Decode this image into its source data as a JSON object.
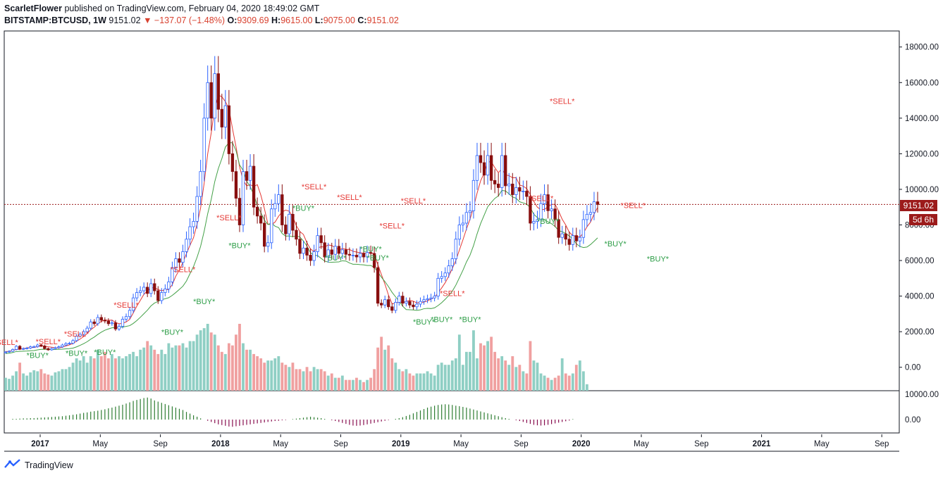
{
  "header": {
    "author": "ScarletFlower",
    "published_text": "published on TradingView.com, February 04, 2020 18:49:02 GMT",
    "symbol": "BITSTAMP:BTCUSD, 1W",
    "last": "9151.02",
    "change": "▼ −137.07 (−1.48%)",
    "o_label": "O:",
    "o_value": "9309.69",
    "h_label": "H:",
    "h_value": "9615.00",
    "l_label": "L:",
    "l_value": "9075.00",
    "c_label": "C:",
    "c_value": "9151.02"
  },
  "price_tag": "9151.02",
  "time_tag": "5d 6h",
  "footer": {
    "brand": "TradingView"
  },
  "colors": {
    "up": "#2962ff",
    "down": "#880e0e",
    "vol_up": "#8fcfc4",
    "vol_down": "#f0a0a0",
    "red_line": "#e53935",
    "green_line": "#43a047",
    "sell": "#e53935",
    "buy": "#2e9e48"
  },
  "chart_data": {
    "type": "candlestick",
    "symbol": "BITSTAMP:BTCUSD",
    "interval": "1W",
    "y_ticks": [
      "18000.00",
      "16000.00",
      "14000.00",
      "12000.00",
      "10000.00",
      "8000.00",
      "6000.00",
      "4000.00",
      "2000.00",
      "0.00"
    ],
    "osc_ticks": [
      "10000.00",
      "0.00"
    ],
    "x_ticks": [
      "2017",
      "May",
      "Sep",
      "2018",
      "May",
      "Sep",
      "2019",
      "May",
      "Sep",
      "2020",
      "May",
      "Sep",
      "2021",
      "May",
      "Sep"
    ],
    "ylim": [
      0,
      18900
    ],
    "series": [
      {
        "name": "price",
        "values": [
          860,
          900,
          1000,
          1180,
          1020,
          1050,
          1080,
          1150,
          1160,
          1250,
          1200,
          1050,
          980,
          1050,
          1100,
          1150,
          1250,
          1330,
          1350,
          1500,
          1750,
          1850,
          2000,
          2200,
          2550,
          2450,
          2800,
          2650,
          2600,
          2450,
          2500,
          2150,
          2300,
          2700,
          2850,
          3200,
          3900,
          4200,
          4300,
          4500,
          4150,
          4700,
          4300,
          3750,
          4200,
          4400,
          4800,
          5600,
          6100,
          5900,
          6500,
          7200,
          7900,
          8200,
          9600,
          11000,
          14000,
          16000,
          14000,
          16500,
          14500,
          13500,
          14700,
          12000,
          11000,
          9500,
          8000,
          11000,
          10500,
          11300,
          9000,
          8500,
          8100,
          6800,
          7000,
          8900,
          9200,
          9700,
          8000,
          7500,
          8600,
          7700,
          7200,
          6400,
          6700,
          6300,
          6000,
          6500,
          7400,
          7000,
          6200,
          6600,
          6350,
          6800,
          6400,
          6600,
          6350,
          6300,
          6300,
          6200,
          6400,
          6200,
          6450,
          6400,
          5600,
          3600,
          3500,
          3800,
          3400,
          3200,
          3650,
          4000,
          3600,
          3700,
          3500,
          3400,
          3550,
          3700,
          3800,
          3850,
          3900,
          4000,
          5000,
          5100,
          5300,
          5700,
          6100,
          7200,
          8000,
          8100,
          8700,
          8800,
          10500,
          11900,
          11500,
          10800,
          11900,
          10500,
          10300,
          10100,
          11900,
          10200,
          10300,
          9700,
          10100,
          9900,
          9900,
          9600,
          8100,
          8200,
          8300,
          9200,
          9700,
          8800,
          8900,
          8300,
          7300,
          7500,
          7200,
          6900,
          7400,
          7100,
          7300,
          8300,
          8600,
          8700,
          9300,
          9150
        ]
      },
      {
        "name": "volume",
        "values": [
          0.6,
          0.55,
          0.7,
          0.9,
          1.3,
          0.8,
          0.7,
          0.85,
          0.95,
          0.9,
          1.0,
          0.8,
          0.75,
          0.7,
          0.85,
          0.9,
          1.0,
          1.0,
          1.1,
          1.3,
          1.5,
          1.4,
          1.6,
          1.3,
          1.6,
          1.5,
          1.9,
          1.6,
          1.8,
          1.5,
          1.7,
          1.5,
          1.6,
          1.5,
          1.6,
          1.7,
          1.8,
          1.6,
          1.9,
          2.0,
          2.3,
          2.1,
          1.9,
          1.7,
          1.9,
          1.7,
          2.2,
          2.0,
          2.1,
          2.1,
          2.2,
          2.0,
          2.3,
          2.3,
          2.6,
          2.8,
          2.9,
          3.1,
          2.7,
          2.6,
          2.1,
          1.8,
          1.7,
          2.2,
          2.1,
          2.6,
          3.1,
          2.2,
          1.9,
          1.9,
          1.7,
          1.6,
          1.5,
          1.3,
          1.4,
          1.4,
          1.5,
          1.6,
          1.3,
          1.2,
          1.1,
          1.3,
          1.0,
          1.0,
          0.9,
          1.1,
          0.9,
          1.1,
          1.0,
          1.0,
          0.9,
          0.7,
          0.8,
          0.6,
          0.6,
          0.7,
          0.5,
          0.5,
          0.5,
          0.6,
          0.5,
          0.4,
          0.5,
          0.6,
          1.0,
          2.0,
          2.5,
          1.9,
          2.1,
          1.5,
          1.3,
          1.0,
          0.9,
          1.0,
          0.8,
          0.7,
          0.8,
          0.8,
          0.8,
          0.9,
          0.8,
          0.7,
          1.2,
          1.3,
          1.2,
          1.2,
          1.4,
          1.5,
          2.6,
          1.2,
          1.8,
          1.8,
          2.8,
          1.5,
          2.2,
          2.1,
          2.3,
          2.5,
          1.8,
          1.5,
          1.6,
          1.4,
          1.2,
          1.6,
          1.1,
          1.2,
          0.9,
          0.8,
          2.3,
          1.4,
          1.3,
          0.8,
          0.7,
          0.6,
          0.5,
          0.6,
          0.7,
          1.5,
          0.8,
          0.7,
          0.8,
          1.2,
          1.4,
          0.9,
          0.3
        ]
      },
      {
        "name": "osc",
        "values": [
          0,
          0,
          0.3,
          0.3,
          0.4,
          0.5,
          0.5,
          0.6,
          0.6,
          0.7,
          0.8,
          0.9,
          1,
          1.1,
          1.2,
          1.3,
          1.4,
          1.6,
          1.8,
          2,
          2.2,
          2.5,
          2.8,
          3,
          3.3,
          3.5,
          3.7,
          4,
          4.3,
          4.7,
          5,
          5.4,
          5.8,
          6.2,
          6.7,
          7.2,
          7.8,
          8.2,
          8.6,
          9,
          9.2,
          8.8,
          8,
          7.5,
          7,
          6.5,
          6,
          5.5,
          5,
          4.5,
          4,
          3.2,
          2.5,
          1.8,
          1.2,
          0.5,
          0,
          -0.5,
          -1,
          -1.5,
          -2,
          -2.3,
          -2.6,
          -2.9,
          -3,
          -2.8,
          -2.6,
          -2.4,
          -2.2,
          -2,
          -1.8,
          -1.6,
          -1.4,
          -1.2,
          -1,
          -0.8,
          -0.6,
          -0.5,
          -0.3,
          -0.2,
          0,
          0.2,
          0.4,
          0.6,
          0.8,
          1,
          1.2,
          1,
          0.8,
          0.6,
          0.3,
          0,
          -0.3,
          -0.6,
          -1,
          -1.4,
          -1.8,
          -2.2,
          -2.5,
          -2.6,
          -2.5,
          -2.3,
          -2,
          -1.7,
          -1.4,
          -1.1,
          -0.8,
          -0.5,
          -0.2,
          0,
          0.3,
          0.6,
          1,
          1.5,
          2,
          2.6,
          3.2,
          3.8,
          4.4,
          5,
          5.4,
          5.8,
          6.1,
          6.3,
          6.4,
          6.3,
          6.1,
          5.8,
          5.6,
          5.3,
          5,
          4.6,
          4.2,
          3.8,
          3.4,
          3,
          2.6,
          2.2,
          1.8,
          1.4,
          1,
          0.6,
          0.3,
          0,
          -0.3,
          -0.6,
          -1,
          -1.4,
          -1.8,
          -2.2,
          -2.4,
          -2.5,
          -2.4,
          -2.2,
          -1.9,
          -1.6,
          -1.3,
          -1,
          -0.7,
          -0.4,
          0.2
        ]
      }
    ],
    "signals": [
      {
        "text": "*SELL*",
        "type": "sell",
        "i": 0,
        "price": 1250
      },
      {
        "text": "*SELL*",
        "type": "sell",
        "i": 12,
        "price": 1300
      },
      {
        "text": "*SELL*",
        "type": "sell",
        "i": 20,
        "price": 1720
      },
      {
        "text": "*BUY*",
        "type": "buy",
        "i": 9,
        "price": 520
      },
      {
        "text": "*BUY*",
        "type": "buy",
        "i": 20,
        "price": 640
      },
      {
        "text": "*BUY*",
        "type": "buy",
        "i": 28,
        "price": 700
      },
      {
        "text": "*SELL*",
        "type": "sell",
        "i": 34,
        "price": 3350
      },
      {
        "text": "*BUY*",
        "type": "buy",
        "i": 47,
        "price": 1820
      },
      {
        "text": "*SELL*",
        "type": "sell",
        "i": 50,
        "price": 5350
      },
      {
        "text": "*BUY*",
        "type": "buy",
        "i": 56,
        "price": 3550
      },
      {
        "text": "*SELL*",
        "type": "sell",
        "i": 63,
        "price": 8250
      },
      {
        "text": "*BUY*",
        "type": "buy",
        "i": 66,
        "price": 6700
      },
      {
        "text": "*SELL*",
        "type": "sell",
        "i": 87,
        "price": 10000
      },
      {
        "text": "*BUY*",
        "type": "buy",
        "i": 84,
        "price": 8800
      },
      {
        "text": "*SELL*",
        "type": "sell",
        "i": 97,
        "price": 9400
      },
      {
        "text": "*BUY*",
        "type": "buy",
        "i": 93,
        "price": 6000
      },
      {
        "text": "*BUY*",
        "type": "buy",
        "i": 103,
        "price": 6500
      },
      {
        "text": "*BUY*",
        "type": "buy",
        "i": 105,
        "price": 6000
      },
      {
        "text": "*SELL*",
        "type": "sell",
        "i": 109,
        "price": 7800
      },
      {
        "text": "*SELL*",
        "type": "sell",
        "i": 115,
        "price": 9200
      },
      {
        "text": "*BUY*",
        "type": "buy",
        "i": 118,
        "price": 2400
      },
      {
        "text": "*SELL*",
        "type": "sell",
        "i": 126,
        "price": 4000
      },
      {
        "text": "*BUY*",
        "type": "buy",
        "i": 123,
        "price": 2550
      },
      {
        "text": "*BUY*",
        "type": "buy",
        "i": 131,
        "price": 2550
      },
      {
        "text": "*SELL*",
        "type": "sell",
        "i": 157,
        "price": 14800
      },
      {
        "text": "*SELL*",
        "type": "sell",
        "i": 151,
        "price": 9350
      },
      {
        "text": "*BUY*",
        "type": "buy",
        "i": 153,
        "price": 8050
      },
      {
        "text": "*BUY*",
        "type": "buy",
        "i": 172,
        "price": 6800
      },
      {
        "text": "*SELL*",
        "type": "sell",
        "i": 177,
        "price": 8950
      },
      {
        "text": "*BUY*",
        "type": "buy",
        "i": 184,
        "price": 5950
      }
    ]
  }
}
